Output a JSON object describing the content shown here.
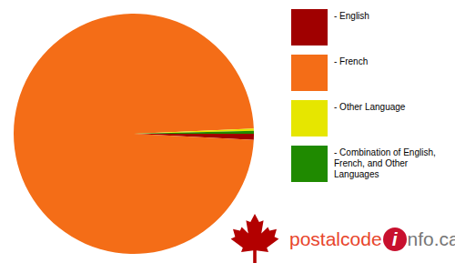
{
  "chart_data": {
    "type": "pie",
    "categories": [
      "- English",
      "- French",
      "- Other Language",
      "- Combination of English, French, and Other Languages"
    ],
    "values": [
      0.8,
      98.5,
      0.3,
      0.4
    ],
    "colors": [
      "#a00000",
      "#f46d17",
      "#e6e600",
      "#1f8a00"
    ],
    "annotations": [
      "postalcode",
      "i",
      "nfo.ca"
    ]
  }
}
